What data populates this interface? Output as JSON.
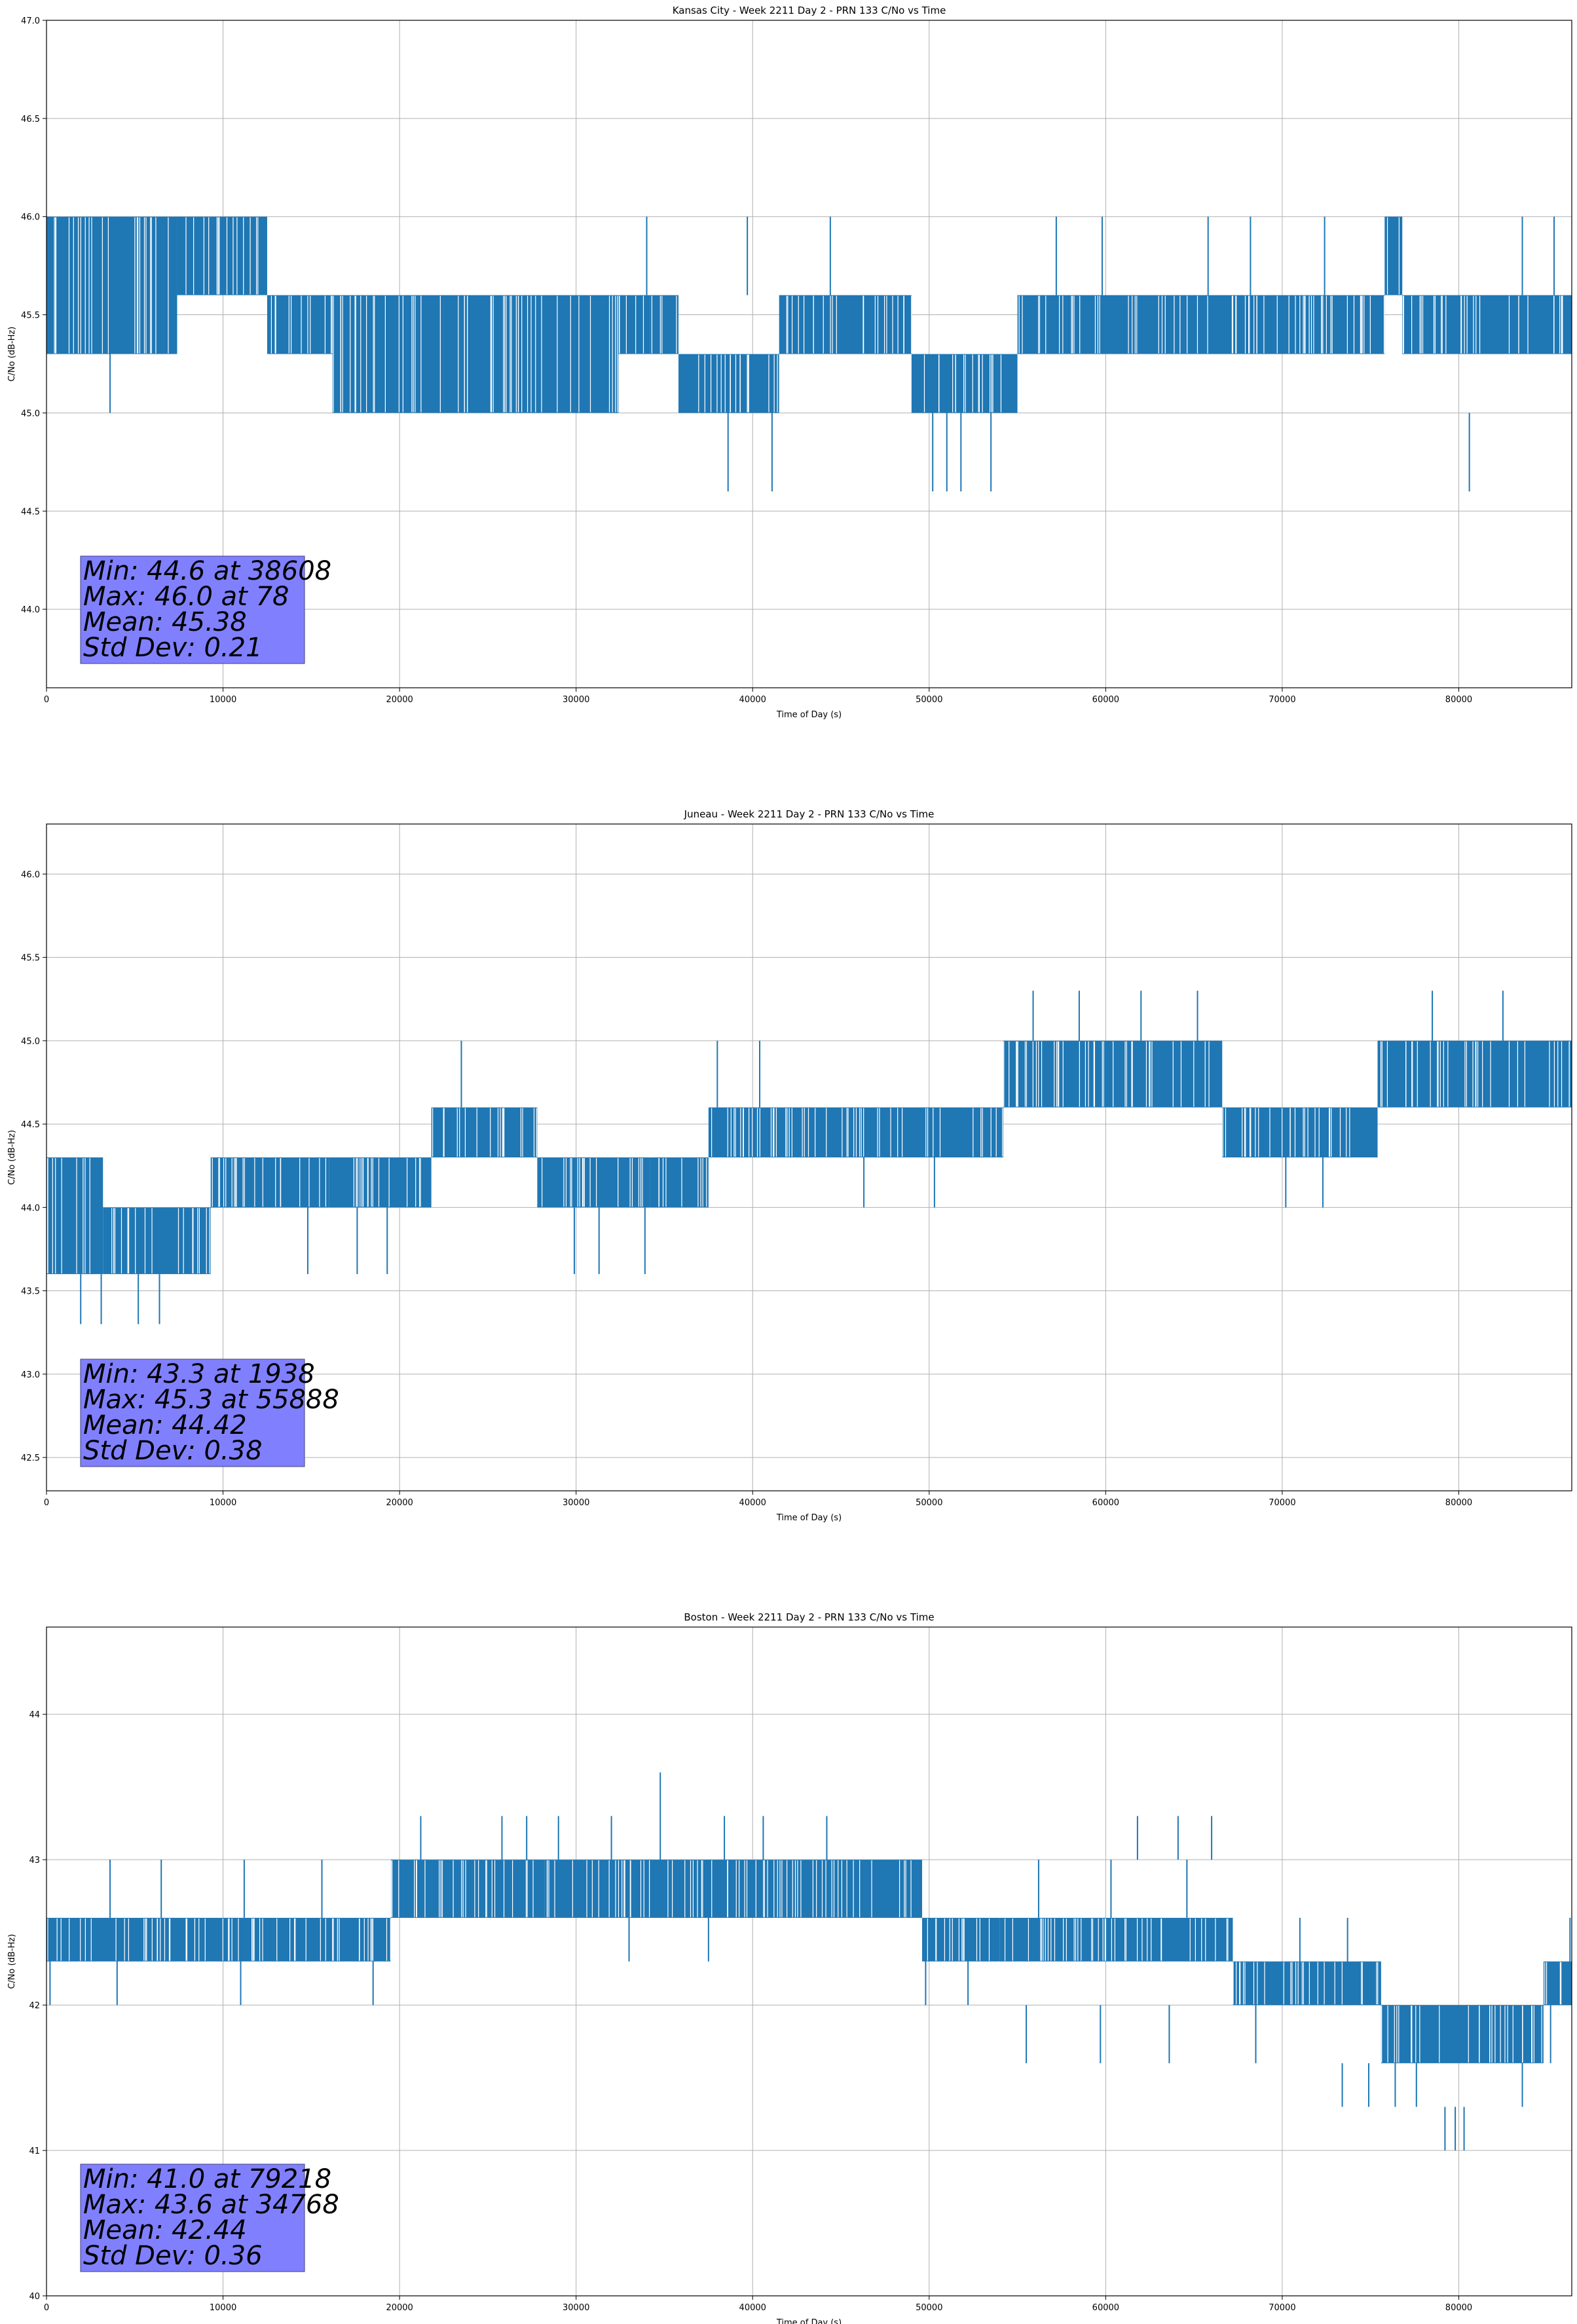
{
  "figure": {
    "series_color": "#1f77b4",
    "stats_box_color": "#8080ff"
  },
  "chart_data": [
    {
      "type": "line",
      "title": "Kansas City - Week 2211 Day 2 - PRN 133 C/No vs Time",
      "xlabel": "Time of Day (s)",
      "ylabel": "C/No (dB-Hz)",
      "xlim": [
        0,
        86400
      ],
      "ylim": [
        43.6,
        47.0
      ],
      "xticks": [
        0,
        10000,
        20000,
        30000,
        40000,
        50000,
        60000,
        70000,
        80000
      ],
      "xtick_labels": [
        "0",
        "10000",
        "20000",
        "30000",
        "40000",
        "50000",
        "60000",
        "70000",
        "80000"
      ],
      "yticks": [
        44.0,
        44.5,
        45.0,
        45.5,
        46.0,
        46.5,
        47.0
      ],
      "ytick_labels": [
        "44.0",
        "44.5",
        "45.0",
        "45.5",
        "46.0",
        "46.5",
        "47.0"
      ],
      "grid": true,
      "stats": [
        "Min: 44.6 at 38608",
        "Max: 46.0 at 78",
        "Mean: 45.38",
        "Std Dev: 0.21"
      ],
      "series": [
        {
          "name": "PRN 133 C/No",
          "segments": [
            {
              "x": [
                0,
                7400
              ],
              "low": 45.3,
              "high": 46.0
            },
            {
              "x": [
                7400,
                12500
              ],
              "low": 45.6,
              "high": 46.0
            },
            {
              "x": [
                12500,
                16200
              ],
              "low": 45.3,
              "high": 45.6
            },
            {
              "x": [
                16200,
                32400
              ],
              "low": 45.0,
              "high": 45.6
            },
            {
              "x": [
                32400,
                34200
              ],
              "low": 45.3,
              "high": 45.6
            },
            {
              "x": [
                34200,
                35800
              ],
              "low": 45.3,
              "high": 45.6
            },
            {
              "x": [
                35800,
                41500
              ],
              "low": 45.0,
              "high": 45.3
            },
            {
              "x": [
                41500,
                49000
              ],
              "low": 45.3,
              "high": 45.6
            },
            {
              "x": [
                49000,
                55000
              ],
              "low": 45.0,
              "high": 45.3
            },
            {
              "x": [
                55000,
                75800
              ],
              "low": 45.3,
              "high": 45.6
            },
            {
              "x": [
                75800,
                76800
              ],
              "low": 45.6,
              "high": 46.0
            },
            {
              "x": [
                76800,
                86400
              ],
              "low": 45.3,
              "high": 45.6
            }
          ],
          "spikes": [
            {
              "x": 38608,
              "low": 44.6,
              "high": 45.0
            },
            {
              "x": 41100,
              "low": 44.6,
              "high": 45.0
            },
            {
              "x": 50200,
              "low": 44.6,
              "high": 45.0
            },
            {
              "x": 51000,
              "low": 44.6,
              "high": 45.0
            },
            {
              "x": 51800,
              "low": 44.6,
              "high": 45.0
            },
            {
              "x": 53500,
              "low": 44.6,
              "high": 45.0
            },
            {
              "x": 80600,
              "low": 44.6,
              "high": 45.0
            },
            {
              "x": 3600,
              "low": 45.0,
              "high": 45.3
            },
            {
              "x": 78,
              "low": 45.6,
              "high": 46.0
            },
            {
              "x": 4600,
              "low": 45.6,
              "high": 46.0
            },
            {
              "x": 34000,
              "low": 45.6,
              "high": 46.0
            },
            {
              "x": 39700,
              "low": 45.6,
              "high": 46.0
            },
            {
              "x": 44400,
              "low": 45.6,
              "high": 46.0
            },
            {
              "x": 57200,
              "low": 45.6,
              "high": 46.0
            },
            {
              "x": 59800,
              "low": 45.6,
              "high": 46.0
            },
            {
              "x": 65800,
              "low": 45.6,
              "high": 46.0
            },
            {
              "x": 68200,
              "low": 45.6,
              "high": 46.0
            },
            {
              "x": 72400,
              "low": 45.6,
              "high": 46.0
            },
            {
              "x": 83600,
              "low": 45.6,
              "high": 46.0
            },
            {
              "x": 85400,
              "low": 45.6,
              "high": 46.0
            }
          ]
        }
      ]
    },
    {
      "type": "line",
      "title": "Juneau - Week 2211 Day 2 - PRN 133 C/No vs Time",
      "xlabel": "Time of Day (s)",
      "ylabel": "C/No (dB-Hz)",
      "xlim": [
        0,
        86400
      ],
      "ylim": [
        42.3,
        46.3
      ],
      "xticks": [
        0,
        10000,
        20000,
        30000,
        40000,
        50000,
        60000,
        70000,
        80000
      ],
      "xtick_labels": [
        "0",
        "10000",
        "20000",
        "30000",
        "40000",
        "50000",
        "60000",
        "70000",
        "80000"
      ],
      "yticks": [
        42.5,
        43.0,
        43.5,
        44.0,
        44.5,
        45.0,
        45.5,
        46.0
      ],
      "ytick_labels": [
        "42.5",
        "43.0",
        "43.5",
        "44.0",
        "44.5",
        "45.0",
        "45.5",
        "46.0"
      ],
      "grid": true,
      "stats": [
        "Min: 43.3 at 1938",
        "Max: 45.3 at 55888",
        "Mean: 44.42",
        "Std Dev: 0.38"
      ],
      "series": [
        {
          "name": "PRN 133 C/No",
          "segments": [
            {
              "x": [
                0,
                3200
              ],
              "low": 43.6,
              "high": 44.3
            },
            {
              "x": [
                3200,
                9300
              ],
              "low": 43.6,
              "high": 44.0
            },
            {
              "x": [
                9300,
                16000
              ],
              "low": 44.0,
              "high": 44.3
            },
            {
              "x": [
                16000,
                21800
              ],
              "low": 44.0,
              "high": 44.3
            },
            {
              "x": [
                21800,
                27800
              ],
              "low": 44.3,
              "high": 44.6
            },
            {
              "x": [
                27800,
                34200
              ],
              "low": 44.0,
              "high": 44.3
            },
            {
              "x": [
                34200,
                37500
              ],
              "low": 44.0,
              "high": 44.3
            },
            {
              "x": [
                37500,
                54200
              ],
              "low": 44.3,
              "high": 44.6
            },
            {
              "x": [
                54200,
                66600
              ],
              "low": 44.6,
              "high": 45.0
            },
            {
              "x": [
                66600,
                75400
              ],
              "low": 44.3,
              "high": 44.6
            },
            {
              "x": [
                75400,
                86400
              ],
              "low": 44.6,
              "high": 45.0
            }
          ],
          "spikes": [
            {
              "x": 1938,
              "low": 43.3,
              "high": 43.6
            },
            {
              "x": 3100,
              "low": 43.3,
              "high": 43.6
            },
            {
              "x": 5200,
              "low": 43.3,
              "high": 43.6
            },
            {
              "x": 6400,
              "low": 43.3,
              "high": 43.6
            },
            {
              "x": 14800,
              "low": 43.6,
              "high": 44.0
            },
            {
              "x": 17600,
              "low": 43.6,
              "high": 44.0
            },
            {
              "x": 19300,
              "low": 43.6,
              "high": 44.0
            },
            {
              "x": 29900,
              "low": 43.6,
              "high": 44.0
            },
            {
              "x": 31300,
              "low": 43.6,
              "high": 44.0
            },
            {
              "x": 33900,
              "low": 43.6,
              "high": 44.0
            },
            {
              "x": 46300,
              "low": 44.0,
              "high": 44.3
            },
            {
              "x": 50300,
              "low": 44.0,
              "high": 44.3
            },
            {
              "x": 70200,
              "low": 44.0,
              "high": 44.3
            },
            {
              "x": 72300,
              "low": 44.0,
              "high": 44.3
            },
            {
              "x": 23500,
              "low": 44.6,
              "high": 45.0
            },
            {
              "x": 38000,
              "low": 44.6,
              "high": 45.0
            },
            {
              "x": 40400,
              "low": 44.6,
              "high": 45.0
            },
            {
              "x": 55888,
              "low": 45.0,
              "high": 45.3
            },
            {
              "x": 58500,
              "low": 45.0,
              "high": 45.3
            },
            {
              "x": 62000,
              "low": 45.0,
              "high": 45.3
            },
            {
              "x": 65200,
              "low": 45.0,
              "high": 45.3
            },
            {
              "x": 78500,
              "low": 45.0,
              "high": 45.3
            },
            {
              "x": 82500,
              "low": 45.0,
              "high": 45.3
            }
          ]
        }
      ]
    },
    {
      "type": "line",
      "title": "Boston - Week 2211 Day 2 - PRN 133 C/No vs Time",
      "xlabel": "Time of Day (s)",
      "ylabel": "C/No (dB-Hz)",
      "xlim": [
        0,
        86400
      ],
      "ylim": [
        40.0,
        44.6
      ],
      "xticks": [
        0,
        10000,
        20000,
        30000,
        40000,
        50000,
        60000,
        70000,
        80000
      ],
      "xtick_labels": [
        "0",
        "10000",
        "20000",
        "30000",
        "40000",
        "50000",
        "60000",
        "70000",
        "80000"
      ],
      "yticks": [
        40,
        41,
        42,
        43,
        44
      ],
      "ytick_labels": [
        "40",
        "41",
        "42",
        "43",
        "44"
      ],
      "grid": true,
      "stats": [
        "Min: 41.0 at 79218",
        "Max: 43.6 at 34768",
        "Mean: 42.44",
        "Std Dev: 0.36"
      ],
      "series": [
        {
          "name": "PRN 133 C/No",
          "segments": [
            {
              "x": [
                0,
                8000
              ],
              "low": 42.3,
              "high": 42.6
            },
            {
              "x": [
                8000,
                19500
              ],
              "low": 42.3,
              "high": 42.6
            },
            {
              "x": [
                19500,
                28200
              ],
              "low": 42.6,
              "high": 43.0
            },
            {
              "x": [
                28200,
                41200
              ],
              "low": 42.6,
              "high": 43.0
            },
            {
              "x": [
                41200,
                49600
              ],
              "low": 42.6,
              "high": 43.0
            },
            {
              "x": [
                49600,
                54000
              ],
              "low": 42.3,
              "high": 42.6
            },
            {
              "x": [
                54000,
                67200
              ],
              "low": 42.3,
              "high": 42.6
            },
            {
              "x": [
                67200,
                75600
              ],
              "low": 42.0,
              "high": 42.3
            },
            {
              "x": [
                75600,
                84800
              ],
              "low": 41.6,
              "high": 42.0
            },
            {
              "x": [
                84800,
                86400
              ],
              "low": 42.0,
              "high": 42.3
            }
          ],
          "spikes": [
            {
              "x": 200,
              "low": 42.0,
              "high": 42.3
            },
            {
              "x": 4000,
              "low": 42.0,
              "high": 42.3
            },
            {
              "x": 11000,
              "low": 42.0,
              "high": 42.3
            },
            {
              "x": 18500,
              "low": 42.0,
              "high": 42.3
            },
            {
              "x": 33000,
              "low": 42.3,
              "high": 42.6
            },
            {
              "x": 37500,
              "low": 42.3,
              "high": 42.6
            },
            {
              "x": 49800,
              "low": 42.0,
              "high": 42.3
            },
            {
              "x": 52200,
              "low": 42.0,
              "high": 42.3
            },
            {
              "x": 55500,
              "low": 41.6,
              "high": 42.0
            },
            {
              "x": 59700,
              "low": 41.6,
              "high": 42.0
            },
            {
              "x": 63600,
              "low": 41.6,
              "high": 42.0
            },
            {
              "x": 68500,
              "low": 41.6,
              "high": 42.0
            },
            {
              "x": 73400,
              "low": 41.3,
              "high": 41.6
            },
            {
              "x": 74900,
              "low": 41.3,
              "high": 41.6
            },
            {
              "x": 76400,
              "low": 41.3,
              "high": 41.6
            },
            {
              "x": 77600,
              "low": 41.3,
              "high": 41.6
            },
            {
              "x": 79218,
              "low": 41.0,
              "high": 41.3
            },
            {
              "x": 79800,
              "low": 41.0,
              "high": 41.3
            },
            {
              "x": 80300,
              "low": 41.0,
              "high": 41.3
            },
            {
              "x": 83600,
              "low": 41.3,
              "high": 41.6
            },
            {
              "x": 85200,
              "low": 41.6,
              "high": 42.0
            },
            {
              "x": 34768,
              "low": 43.0,
              "high": 43.6
            },
            {
              "x": 21200,
              "low": 43.0,
              "high": 43.3
            },
            {
              "x": 25800,
              "low": 43.0,
              "high": 43.3
            },
            {
              "x": 27200,
              "low": 43.0,
              "high": 43.3
            },
            {
              "x": 29000,
              "low": 43.0,
              "high": 43.3
            },
            {
              "x": 32000,
              "low": 43.0,
              "high": 43.3
            },
            {
              "x": 38400,
              "low": 43.0,
              "high": 43.3
            },
            {
              "x": 40600,
              "low": 43.0,
              "high": 43.3
            },
            {
              "x": 44200,
              "low": 43.0,
              "high": 43.3
            },
            {
              "x": 61800,
              "low": 43.0,
              "high": 43.3
            },
            {
              "x": 64100,
              "low": 43.0,
              "high": 43.3
            },
            {
              "x": 66000,
              "low": 43.0,
              "high": 43.3
            },
            {
              "x": 3600,
              "low": 42.6,
              "high": 43.0
            },
            {
              "x": 6500,
              "low": 42.6,
              "high": 43.0
            },
            {
              "x": 11200,
              "low": 42.6,
              "high": 43.0
            },
            {
              "x": 15600,
              "low": 42.6,
              "high": 43.0
            },
            {
              "x": 56200,
              "low": 42.6,
              "high": 43.0
            },
            {
              "x": 60300,
              "low": 42.6,
              "high": 43.0
            },
            {
              "x": 64600,
              "low": 42.6,
              "high": 43.0
            },
            {
              "x": 71000,
              "low": 42.3,
              "high": 42.6
            },
            {
              "x": 73700,
              "low": 42.3,
              "high": 42.6
            },
            {
              "x": 86300,
              "low": 42.3,
              "high": 42.6
            }
          ]
        }
      ]
    }
  ]
}
